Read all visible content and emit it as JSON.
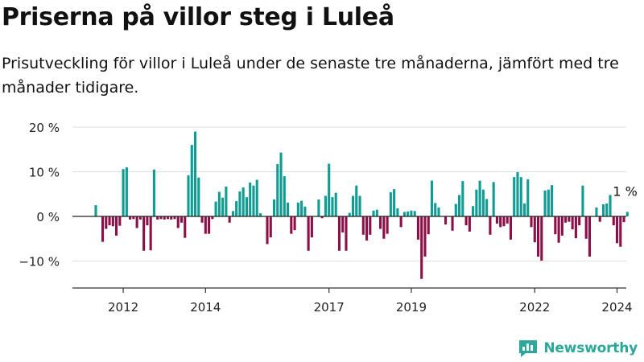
{
  "title": "Priserna på villor steg i Luleå",
  "subtitle": "Prisutveckling för villor i Luleå under de senaste tre månaderna, jämfört med tre månader tidigare.",
  "brand": "Newsworthy",
  "colors": {
    "positive": "#0e9c93",
    "negative": "#8c0f47",
    "grid": "#dddddd",
    "axis": "#333333",
    "brand": "#2ca89a"
  },
  "chart_data": {
    "type": "bar",
    "title": "Priserna på villor steg i Luleå",
    "xlabel": "",
    "ylabel": "",
    "ylim": [
      -16,
      22
    ],
    "yticks": [
      -10,
      0,
      10,
      20
    ],
    "ytick_labels": [
      "−10 %",
      "0 %",
      "10 %",
      "20 %"
    ],
    "xticks": [
      {
        "label": "2012",
        "index": 8
      },
      {
        "label": "2014",
        "index": 32
      },
      {
        "label": "2017",
        "index": 68
      },
      {
        "label": "2019",
        "index": 92
      },
      {
        "label": "2022",
        "index": 128
      },
      {
        "label": "2024",
        "index": 152
      }
    ],
    "annotation": {
      "label": "1 %",
      "index": 155
    },
    "values": [
      2.5,
      0,
      -5.7,
      -2.8,
      -2,
      -2.2,
      -4.3,
      -2.1,
      10.6,
      11,
      -0.7,
      -0.6,
      -2.6,
      -0.7,
      -7.7,
      -2,
      -7.6,
      10.5,
      -0.7,
      -0.6,
      -0.7,
      -0.6,
      -0.7,
      -0.6,
      -2.6,
      -1.4,
      -4.8,
      9.2,
      16,
      19,
      8.7,
      -1.4,
      -3.9,
      -3.9,
      -0.6,
      3.3,
      5.5,
      4.2,
      6.7,
      -1.4,
      1.2,
      3.4,
      5.6,
      6.5,
      4.3,
      7.6,
      6.9,
      8.2,
      0.7,
      0,
      -6.2,
      -4.7,
      3.8,
      11.7,
      14.3,
      9,
      3.1,
      -3.9,
      -3.1,
      3.1,
      3.5,
      2.2,
      -7.7,
      -4.7,
      0,
      3.8,
      -0.4,
      4.6,
      11.8,
      4.3,
      5.3,
      -7.7,
      -3.6,
      -7.7,
      0.8,
      4.6,
      6.9,
      4.6,
      -4.1,
      -5.4,
      -4.1,
      1.3,
      1.5,
      -2.8,
      -5,
      -3.9,
      5.4,
      6.1,
      1.8,
      -2.4,
      1,
      1.1,
      1.3,
      1.2,
      -5.2,
      -14,
      -9,
      -4,
      8,
      3,
      2,
      0,
      -1.8,
      0,
      -3.2,
      2.8,
      4.8,
      7.9,
      -2,
      -3.4,
      2.3,
      6,
      8,
      6,
      3.9,
      -4.1,
      7.7,
      -1.6,
      -2.4,
      -2.2,
      -1.6,
      -5.2,
      8.8,
      9.9,
      8.8,
      2.9,
      8.3,
      -2.4,
      -5.8,
      -9,
      -9.9,
      5.8,
      6,
      7,
      -4,
      -5.9,
      -4.3,
      -1.4,
      -1.2,
      -2.9,
      -4.9,
      -2,
      6.9,
      -5,
      -9,
      0,
      2,
      -1.2,
      2.7,
      2.9,
      4.8,
      -2,
      -6,
      -6.8,
      -1.3,
      1
    ]
  }
}
